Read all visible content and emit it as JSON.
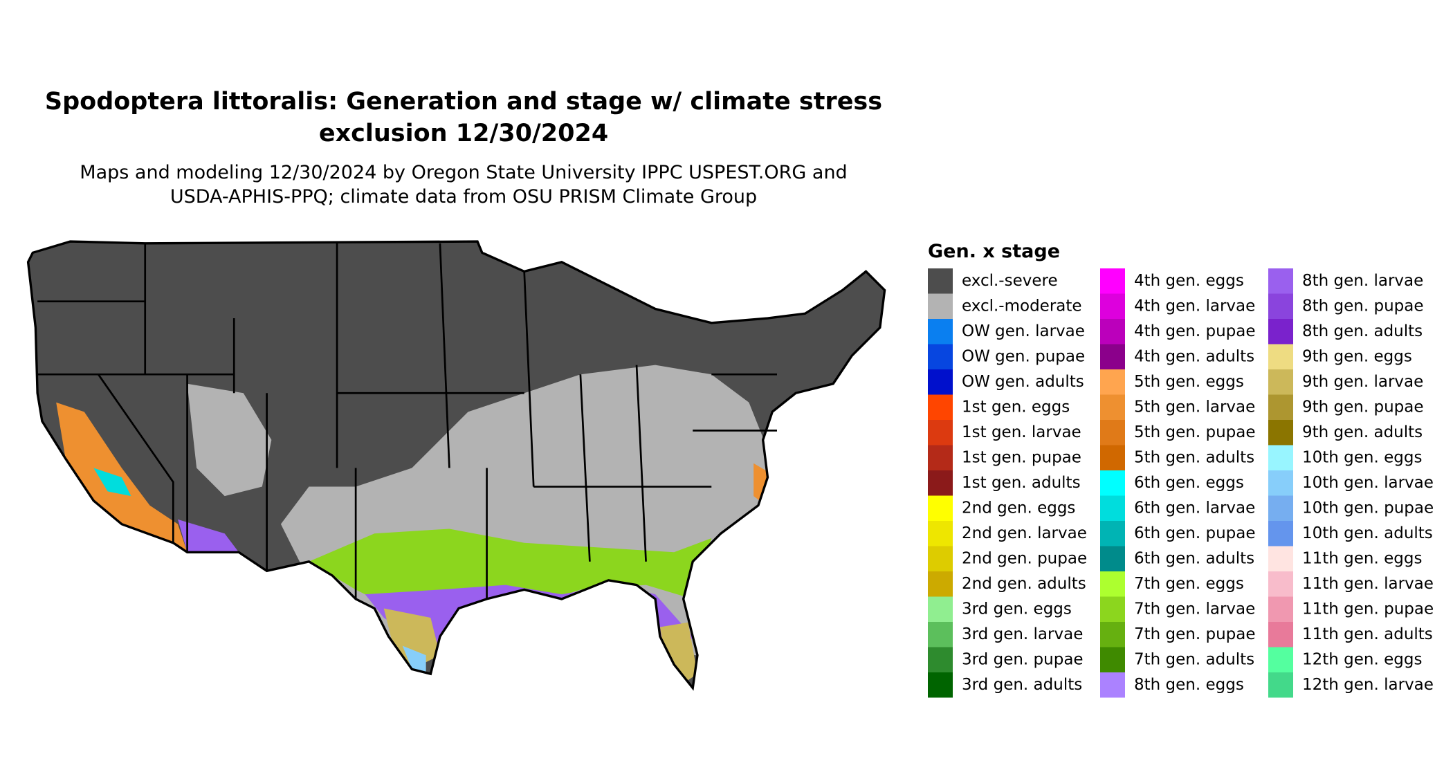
{
  "title_lines": [
    "Spodoptera littoralis: Generation and stage w/ climate stress",
    "exclusion 12/30/2024"
  ],
  "subtitle_lines": [
    "Maps and modeling 12/30/2024 by Oregon State University IPPC USPEST.ORG and",
    "USDA-APHIS-PPQ; climate data from OSU PRISM Climate Group"
  ],
  "legend": {
    "title": "Gen. x stage",
    "items": [
      {
        "label": "excl.-severe",
        "color": "#4d4d4d"
      },
      {
        "label": "excl.-moderate",
        "color": "#b3b3b3"
      },
      {
        "label": "OW gen. larvae",
        "color": "#0a7ff0"
      },
      {
        "label": "OW gen. pupae",
        "color": "#0746e0"
      },
      {
        "label": "OW gen. adults",
        "color": "#0010cc"
      },
      {
        "label": "1st gen. eggs",
        "color": "#ff4500"
      },
      {
        "label": "1st gen. larvae",
        "color": "#dc3a10"
      },
      {
        "label": "1st gen. pupae",
        "color": "#b42a18"
      },
      {
        "label": "1st gen. adults",
        "color": "#8b1a1a"
      },
      {
        "label": "2nd gen. eggs",
        "color": "#ffff00"
      },
      {
        "label": "2nd gen. larvae",
        "color": "#eee600"
      },
      {
        "label": "2nd gen. pupae",
        "color": "#ddcc00"
      },
      {
        "label": "2nd gen. adults",
        "color": "#ccaa00"
      },
      {
        "label": "3rd gen. eggs",
        "color": "#90ee90"
      },
      {
        "label": "3rd gen. larvae",
        "color": "#5cbf5c"
      },
      {
        "label": "3rd gen. pupae",
        "color": "#2e8b2e"
      },
      {
        "label": "3rd gen. adults",
        "color": "#006400"
      },
      {
        "label": "4th gen. eggs",
        "color": "#ff00ff"
      },
      {
        "label": "4th gen. larvae",
        "color": "#dd00dd"
      },
      {
        "label": "4th gen. pupae",
        "color": "#bb00bb"
      },
      {
        "label": "4th gen. adults",
        "color": "#8b008b"
      },
      {
        "label": "5th gen. eggs",
        "color": "#ffa54f"
      },
      {
        "label": "5th gen. larvae",
        "color": "#ee9030"
      },
      {
        "label": "5th gen. pupae",
        "color": "#e07a18"
      },
      {
        "label": "5th gen. adults",
        "color": "#d06800"
      },
      {
        "label": "6th gen. eggs",
        "color": "#00ffff"
      },
      {
        "label": "6th gen. larvae",
        "color": "#00dddd"
      },
      {
        "label": "6th gen. pupae",
        "color": "#00b4b4"
      },
      {
        "label": "6th gen. adults",
        "color": "#008b8b"
      },
      {
        "label": "7th gen. eggs",
        "color": "#adff2f"
      },
      {
        "label": "7th gen. larvae",
        "color": "#8cd61e"
      },
      {
        "label": "7th gen. pupae",
        "color": "#66b010"
      },
      {
        "label": "7th gen. adults",
        "color": "#3f8a00"
      },
      {
        "label": "8th gen. eggs",
        "color": "#ab82ff"
      },
      {
        "label": "8th gen. larvae",
        "color": "#9a60ee"
      },
      {
        "label": "8th gen. pupae",
        "color": "#8a44dd"
      },
      {
        "label": "8th gen. adults",
        "color": "#7a22cc"
      },
      {
        "label": "9th gen. eggs",
        "color": "#eedc82"
      },
      {
        "label": "9th gen. larvae",
        "color": "#ccb85a"
      },
      {
        "label": "9th gen. pupae",
        "color": "#ad9630"
      },
      {
        "label": "9th gen. adults",
        "color": "#8b7500"
      },
      {
        "label": "10th gen. eggs",
        "color": "#98f5ff"
      },
      {
        "label": "10th gen. larvae",
        "color": "#87cefa"
      },
      {
        "label": "10th gen. pupae",
        "color": "#76aef0"
      },
      {
        "label": "10th gen. adults",
        "color": "#6495ed"
      },
      {
        "label": "11th gen. eggs",
        "color": "#ffe4e1"
      },
      {
        "label": "11th gen. larvae",
        "color": "#f8bccb"
      },
      {
        "label": "11th gen. pupae",
        "color": "#f098b0"
      },
      {
        "label": "11th gen. adults",
        "color": "#e87a9a"
      },
      {
        "label": "12th gen. eggs",
        "color": "#54ff9f"
      },
      {
        "label": "12th gen. larvae",
        "color": "#43d98a"
      }
    ]
  }
}
